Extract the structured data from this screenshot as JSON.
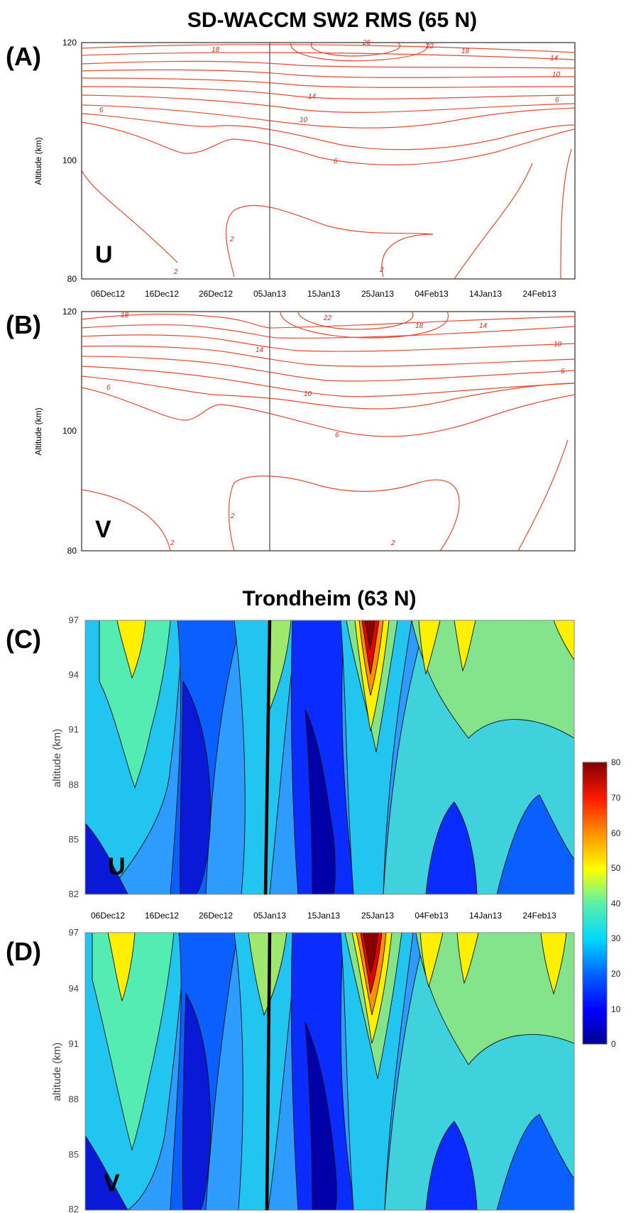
{
  "titles": {
    "top": "SD-WACCM SW2 RMS (65 N)",
    "bottom": "Trondheim (63 N)"
  },
  "chart_data": [
    {
      "type": "line",
      "panel": "(A)",
      "variable": "U",
      "title": "SD-WACCM SW2 RMS (65 N)",
      "ylabel": "Altitude (km)",
      "ylim": [
        80,
        120
      ],
      "yticks": [
        "80",
        "100",
        "120"
      ],
      "xticks": [
        "06Dec12",
        "16Dec12",
        "26Dec12",
        "05Jan13",
        "15Jan13",
        "25Jan13",
        "04Feb13",
        "14Jan13",
        "24Feb13"
      ],
      "vertical_marker": "05Jan13",
      "contour_labels": [
        "2",
        "2",
        "2",
        "6",
        "6",
        "6",
        "10",
        "10",
        "14",
        "14",
        "18",
        "18",
        "22",
        "26"
      ],
      "contour_color": "#e0301e"
    },
    {
      "type": "line",
      "panel": "(B)",
      "variable": "V",
      "ylabel": "Altitude (km)",
      "ylim": [
        80,
        120
      ],
      "yticks": [
        "80",
        "100",
        "120"
      ],
      "vertical_marker": "05Jan13",
      "contour_labels": [
        "2",
        "2",
        "2",
        "6",
        "6",
        "6",
        "10",
        "10",
        "14",
        "14",
        "18",
        "18",
        "22"
      ],
      "contour_color": "#e0301e"
    },
    {
      "type": "heatmap",
      "panel": "(C)",
      "variable": "U",
      "title": "Trondheim (63 N)",
      "ylabel": "altitude (km)",
      "ylim": [
        82,
        97
      ],
      "yticks": [
        "82",
        "85",
        "88",
        "91",
        "94",
        "97"
      ],
      "xticks": [
        "06Dec12",
        "16Dec12",
        "26Dec12",
        "05Jan13",
        "15Jan13",
        "25Jan13",
        "04Feb13",
        "14Jan13",
        "24Feb13"
      ],
      "vertical_marker": "05Jan13",
      "zlim": [
        0,
        80
      ]
    },
    {
      "type": "heatmap",
      "panel": "(D)",
      "variable": "V",
      "ylabel": "altitude (km)",
      "ylim": [
        82,
        97
      ],
      "yticks": [
        "82",
        "85",
        "88",
        "91",
        "94",
        "97"
      ],
      "vertical_marker": "05Jan13",
      "zlim": [
        0,
        80
      ]
    }
  ],
  "colorbar": {
    "ticks": [
      "0",
      "10",
      "20",
      "30",
      "40",
      "50",
      "60",
      "70",
      "80"
    ],
    "colors": [
      "#00008f",
      "#0000ff",
      "#0080ff",
      "#00e0ff",
      "#40ffbf",
      "#9fe070",
      "#ffff00",
      "#ff8000",
      "#ff0000",
      "#800000"
    ]
  }
}
